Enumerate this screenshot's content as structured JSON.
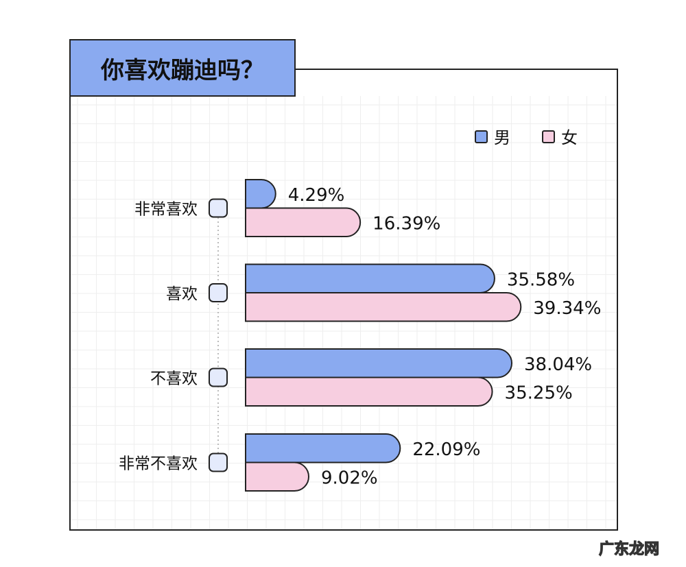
{
  "chart_data": {
    "type": "bar",
    "orientation": "horizontal",
    "title": "你喜欢蹦迪吗？",
    "categories": [
      "非常喜欢",
      "喜欢",
      "不喜欢",
      "非常不喜欢"
    ],
    "series": [
      {
        "name": "男",
        "color": "#8aaaf0",
        "values": [
          4.29,
          35.58,
          38.04,
          22.09
        ],
        "labels": [
          "4.29%",
          "35.58%",
          "38.04%",
          "22.09%"
        ]
      },
      {
        "name": "女",
        "color": "#f7cee0",
        "values": [
          16.39,
          39.34,
          35.25,
          9.02
        ],
        "labels": [
          "16.39%",
          "39.34%",
          "35.25%",
          "9.02%"
        ]
      }
    ],
    "unit": "%",
    "xlim": [
      0,
      50
    ],
    "legend": "top-right",
    "grid": true
  },
  "watermark": "广东龙网"
}
